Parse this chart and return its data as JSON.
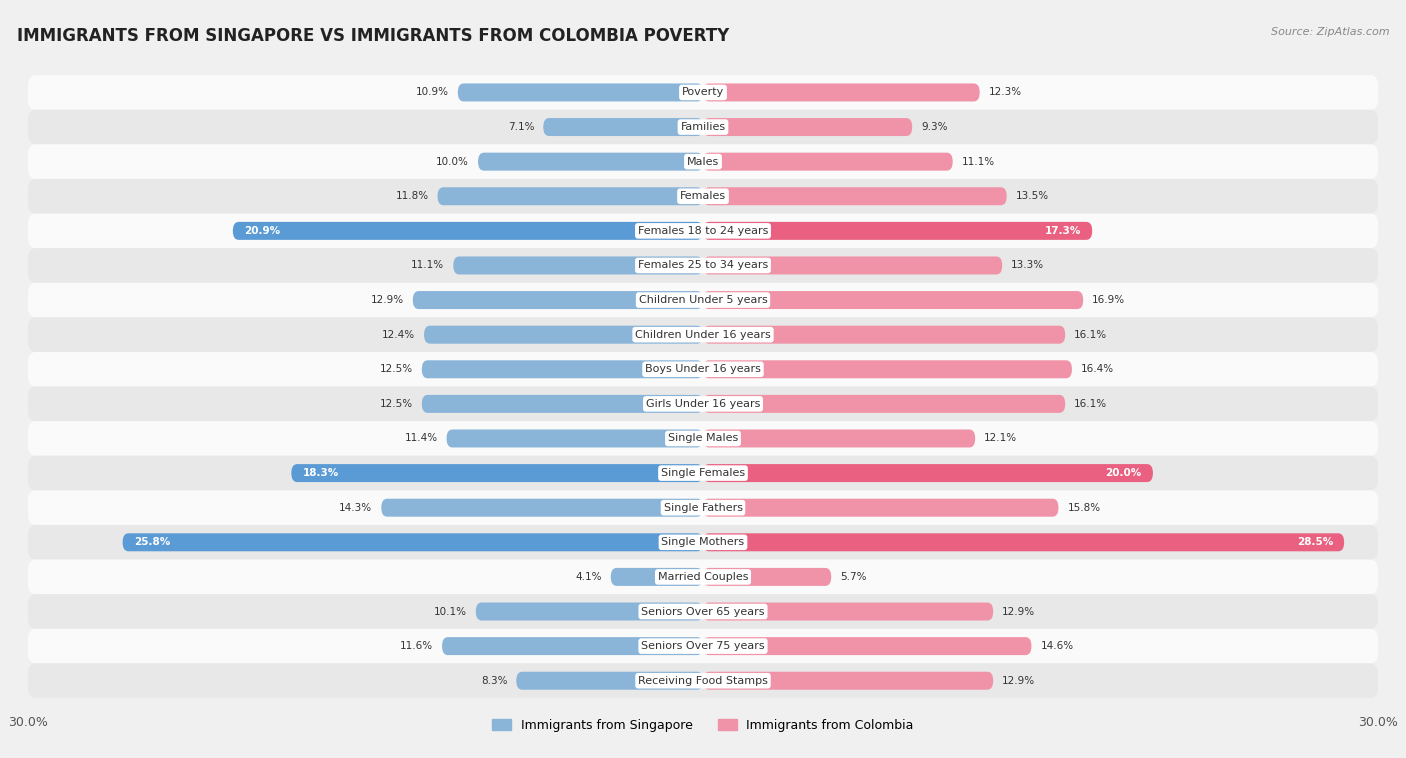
{
  "title": "IMMIGRANTS FROM SINGAPORE VS IMMIGRANTS FROM COLOMBIA POVERTY",
  "source": "Source: ZipAtlas.com",
  "categories": [
    "Poverty",
    "Families",
    "Males",
    "Females",
    "Females 18 to 24 years",
    "Females 25 to 34 years",
    "Children Under 5 years",
    "Children Under 16 years",
    "Boys Under 16 years",
    "Girls Under 16 years",
    "Single Males",
    "Single Females",
    "Single Fathers",
    "Single Mothers",
    "Married Couples",
    "Seniors Over 65 years",
    "Seniors Over 75 years",
    "Receiving Food Stamps"
  ],
  "singapore_values": [
    10.9,
    7.1,
    10.0,
    11.8,
    20.9,
    11.1,
    12.9,
    12.4,
    12.5,
    12.5,
    11.4,
    18.3,
    14.3,
    25.8,
    4.1,
    10.1,
    11.6,
    8.3
  ],
  "colombia_values": [
    12.3,
    9.3,
    11.1,
    13.5,
    17.3,
    13.3,
    16.9,
    16.1,
    16.4,
    16.1,
    12.1,
    20.0,
    15.8,
    28.5,
    5.7,
    12.9,
    14.6,
    12.9
  ],
  "singapore_color": "#8ab4d8",
  "colombia_color": "#f093a8",
  "singapore_highlight_color": "#5b9bd5",
  "colombia_highlight_color": "#e96080",
  "highlight_rows": [
    4,
    11,
    13
  ],
  "axis_max": 30.0,
  "bar_height": 0.52,
  "bg_color": "#f0f0f0",
  "row_bg_even": "#fafafa",
  "row_bg_odd": "#e8e8e8",
  "legend_singapore": "Immigrants from Singapore",
  "legend_colombia": "Immigrants from Colombia",
  "title_fontsize": 12,
  "label_fontsize": 8,
  "value_fontsize": 7.5
}
